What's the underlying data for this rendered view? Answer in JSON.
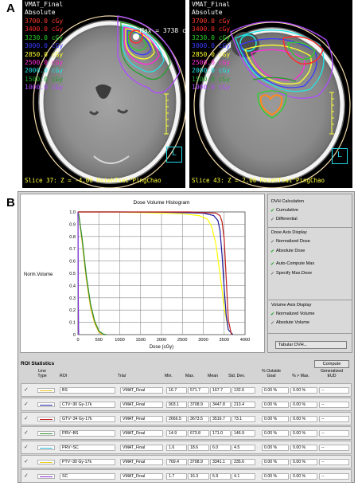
{
  "panel_labels": {
    "a": "A",
    "b": "B"
  },
  "ct_left": {
    "plan": "VMAT_Final",
    "mode": "Absolute",
    "isodoses": [
      {
        "label": "3700.0 cGy",
        "color": "#ff3b2f"
      },
      {
        "label": "3400.0 cGy",
        "color": "#ff2a2a"
      },
      {
        "label": "3230.0 cGy",
        "color": "#2bd12b"
      },
      {
        "label": "3000.0 cGy",
        "color": "#3a3aff"
      },
      {
        "label": "2850.0 cGy",
        "color": "#ffff2e"
      },
      {
        "label": "2500.0 cGy",
        "color": "#ff2dd9"
      },
      {
        "label": "2000.0 cGy",
        "color": "#22e6e6"
      },
      {
        "label": "1500.0 cGy",
        "color": "#22a02a"
      },
      {
        "label": "1000.0 cGy",
        "color": "#b04cff"
      }
    ],
    "max_text": "Max = 3738 c",
    "slice_text": "Slice 37: Z = -4.00 HsiehTsai^PingChao"
  },
  "ct_right": {
    "plan": "VMAT_Final",
    "mode": "Absolute",
    "isodoses": [
      {
        "label": "3700.0 cGy",
        "color": "#ff3b2f"
      },
      {
        "label": "3400.0 cGy",
        "color": "#ff2a2a"
      },
      {
        "label": "3230.0 cGy",
        "color": "#2bd12b"
      },
      {
        "label": "3000.0 cGy",
        "color": "#3a3aff"
      },
      {
        "label": "2850.0 cGy",
        "color": "#ffff2e"
      },
      {
        "label": "2500.0 cGy",
        "color": "#ff2dd9"
      },
      {
        "label": "2000.0 cGy",
        "color": "#22e6e6"
      },
      {
        "label": "1500.0 cGy",
        "color": "#22a02a"
      },
      {
        "label": "1000.0 cGy",
        "color": "#b04cff"
      }
    ],
    "slice_text": "Slice 43: Z = 2.00 HsiehTsai^PingChao"
  },
  "orientation_marker": "L",
  "dvh": {
    "title": "Dose Volume Histogram",
    "xlabel": "Dose (cGy)",
    "ylabel": "Norm.Volume"
  },
  "controls": {
    "dvh_calc_title": "DVH Calculation",
    "cumulative": "Cumulative",
    "differential": "Differential",
    "dose_axis_title": "Dose Axis Display",
    "normalized_dose": "Normalized Dose",
    "absolute_dose": "Absolute Dose",
    "auto_compute_max": "Auto-Compute Max",
    "specify_max_dose": "Specify Max.Dose",
    "volume_axis_title": "Volume Axis Display",
    "normalized_volume": "Normalized Volume",
    "absolute_volume": "Absolute Volume",
    "tabular_button": "Tabular DVH..."
  },
  "roi_stats": {
    "title": "ROI Statistics",
    "compute_button": "Compute",
    "headers": {
      "line_type": "Line Type",
      "roi": "ROI",
      "trial": "Trial",
      "min": "Min.",
      "max": "Max.",
      "mean": "Mean",
      "std": "Std. Dev.",
      "pct_outside": "% Outside Goal",
      "pct_max": "% > Max.",
      "eud": "Generalized EUD"
    },
    "rows": [
      {
        "roi": "BS",
        "trial": "VMAT_Final",
        "min": "16.7",
        "max": "571.7",
        "mean": "167.7",
        "std": "132.6",
        "pct_outside": "0.00 %",
        "pct_max": "0.00 %",
        "eud": "--",
        "color": "#e8c020"
      },
      {
        "roi": "CTV~30 Gy-17k",
        "trial": "VMAT_Final",
        "min": "903.1",
        "max": "3708.9",
        "mean": "3447.8",
        "std": "213.4",
        "pct_outside": "0.00 %",
        "pct_max": "0.00 %",
        "eud": "--",
        "color": "#1a1aa0"
      },
      {
        "roi": "GTV~34 Gy-17k",
        "trial": "VMAT_Final",
        "min": "2666.5",
        "max": "3673.5",
        "mean": "3516.7",
        "std": "73.1",
        "pct_outside": "0.00 %",
        "pct_max": "0.00 %",
        "eud": "--",
        "color": "#c02020"
      },
      {
        "roi": "PRV~BS",
        "trial": "VMAT_Final",
        "min": "14.9",
        "max": "673.8",
        "mean": "171.0",
        "std": "146.9",
        "pct_outside": "0.00 %",
        "pct_max": "0.00 %",
        "eud": "--",
        "color": "#2a8a2a"
      },
      {
        "roi": "PRV~SC",
        "trial": "VMAT_Final",
        "min": "1.6",
        "max": "18.6",
        "mean": "6.0",
        "std": "4.5",
        "pct_outside": "0.00 %",
        "pct_max": "0.00 %",
        "eud": "--",
        "color": "#20b0d0"
      },
      {
        "roi": "PTV~30 Gy-17k",
        "trial": "VMAT_Final",
        "min": "769.4",
        "max": "3708.9",
        "mean": "3341.1",
        "std": "235.6",
        "pct_outside": "0.00 %",
        "pct_max": "0.00 %",
        "eud": "--",
        "color": "#e8d020"
      },
      {
        "roi": "SC",
        "trial": "VMAT_Final",
        "min": "1.7",
        "max": "16.3",
        "mean": "5.9",
        "std": "4.1",
        "pct_outside": "0.00 %",
        "pct_max": "0.00 %",
        "eud": "--",
        "color": "#8a2ad0"
      }
    ]
  },
  "chart_data": {
    "type": "line",
    "title": "Dose Volume Histogram",
    "xlabel": "Dose (cGy)",
    "ylabel": "Norm.Volume",
    "xlim": [
      0,
      4000
    ],
    "ylim": [
      0,
      1.0
    ],
    "x_ticks": [
      "0",
      "500",
      "1000",
      "1500",
      "2000",
      "2500",
      "3000",
      "3500",
      "4000"
    ],
    "y_ticks": [
      "0",
      "0.1",
      "0.2",
      "0.3",
      "0.4",
      "0.5",
      "0.6",
      "0.7",
      "0.8",
      "0.9",
      "1.0"
    ],
    "grid": true,
    "series": [
      {
        "color": "#e8c020",
        "x": [
          0,
          20,
          100,
          200,
          300,
          400,
          500,
          580
        ],
        "y": [
          1.0,
          0.98,
          0.75,
          0.45,
          0.22,
          0.09,
          0.02,
          0.0
        ]
      },
      {
        "color": "#2a8a2a",
        "x": [
          0,
          20,
          100,
          200,
          300,
          400,
          500,
          600,
          680
        ],
        "y": [
          1.0,
          0.98,
          0.78,
          0.48,
          0.25,
          0.11,
          0.03,
          0.005,
          0.0
        ]
      },
      {
        "color": "#20b0d0",
        "x": [
          0,
          2,
          6,
          10,
          15,
          19
        ],
        "y": [
          1.0,
          0.85,
          0.45,
          0.2,
          0.05,
          0.0
        ]
      },
      {
        "color": "#8a2ad0",
        "x": [
          0,
          2,
          6,
          10,
          14,
          17
        ],
        "y": [
          1.0,
          0.85,
          0.45,
          0.2,
          0.05,
          0.0
        ]
      },
      {
        "color": "#ffff00",
        "x": [
          0,
          780,
          1500,
          2500,
          2900,
          3100,
          3200,
          3300,
          3400,
          3500,
          3600,
          3710
        ],
        "y": [
          1.0,
          1.0,
          0.995,
          0.985,
          0.97,
          0.94,
          0.88,
          0.74,
          0.5,
          0.22,
          0.04,
          0.0
        ]
      },
      {
        "color": "#1a1aa0",
        "x": [
          0,
          910,
          2000,
          3000,
          3250,
          3350,
          3400,
          3450,
          3500,
          3550,
          3600,
          3710
        ],
        "y": [
          1.0,
          1.0,
          0.998,
          0.99,
          0.97,
          0.93,
          0.85,
          0.65,
          0.38,
          0.15,
          0.04,
          0.0
        ]
      },
      {
        "color": "#c02020",
        "x": [
          0,
          2670,
          3300,
          3400,
          3450,
          3500,
          3550,
          3600,
          3675
        ],
        "y": [
          1.0,
          1.0,
          0.99,
          0.97,
          0.92,
          0.78,
          0.45,
          0.12,
          0.0
        ]
      }
    ]
  }
}
